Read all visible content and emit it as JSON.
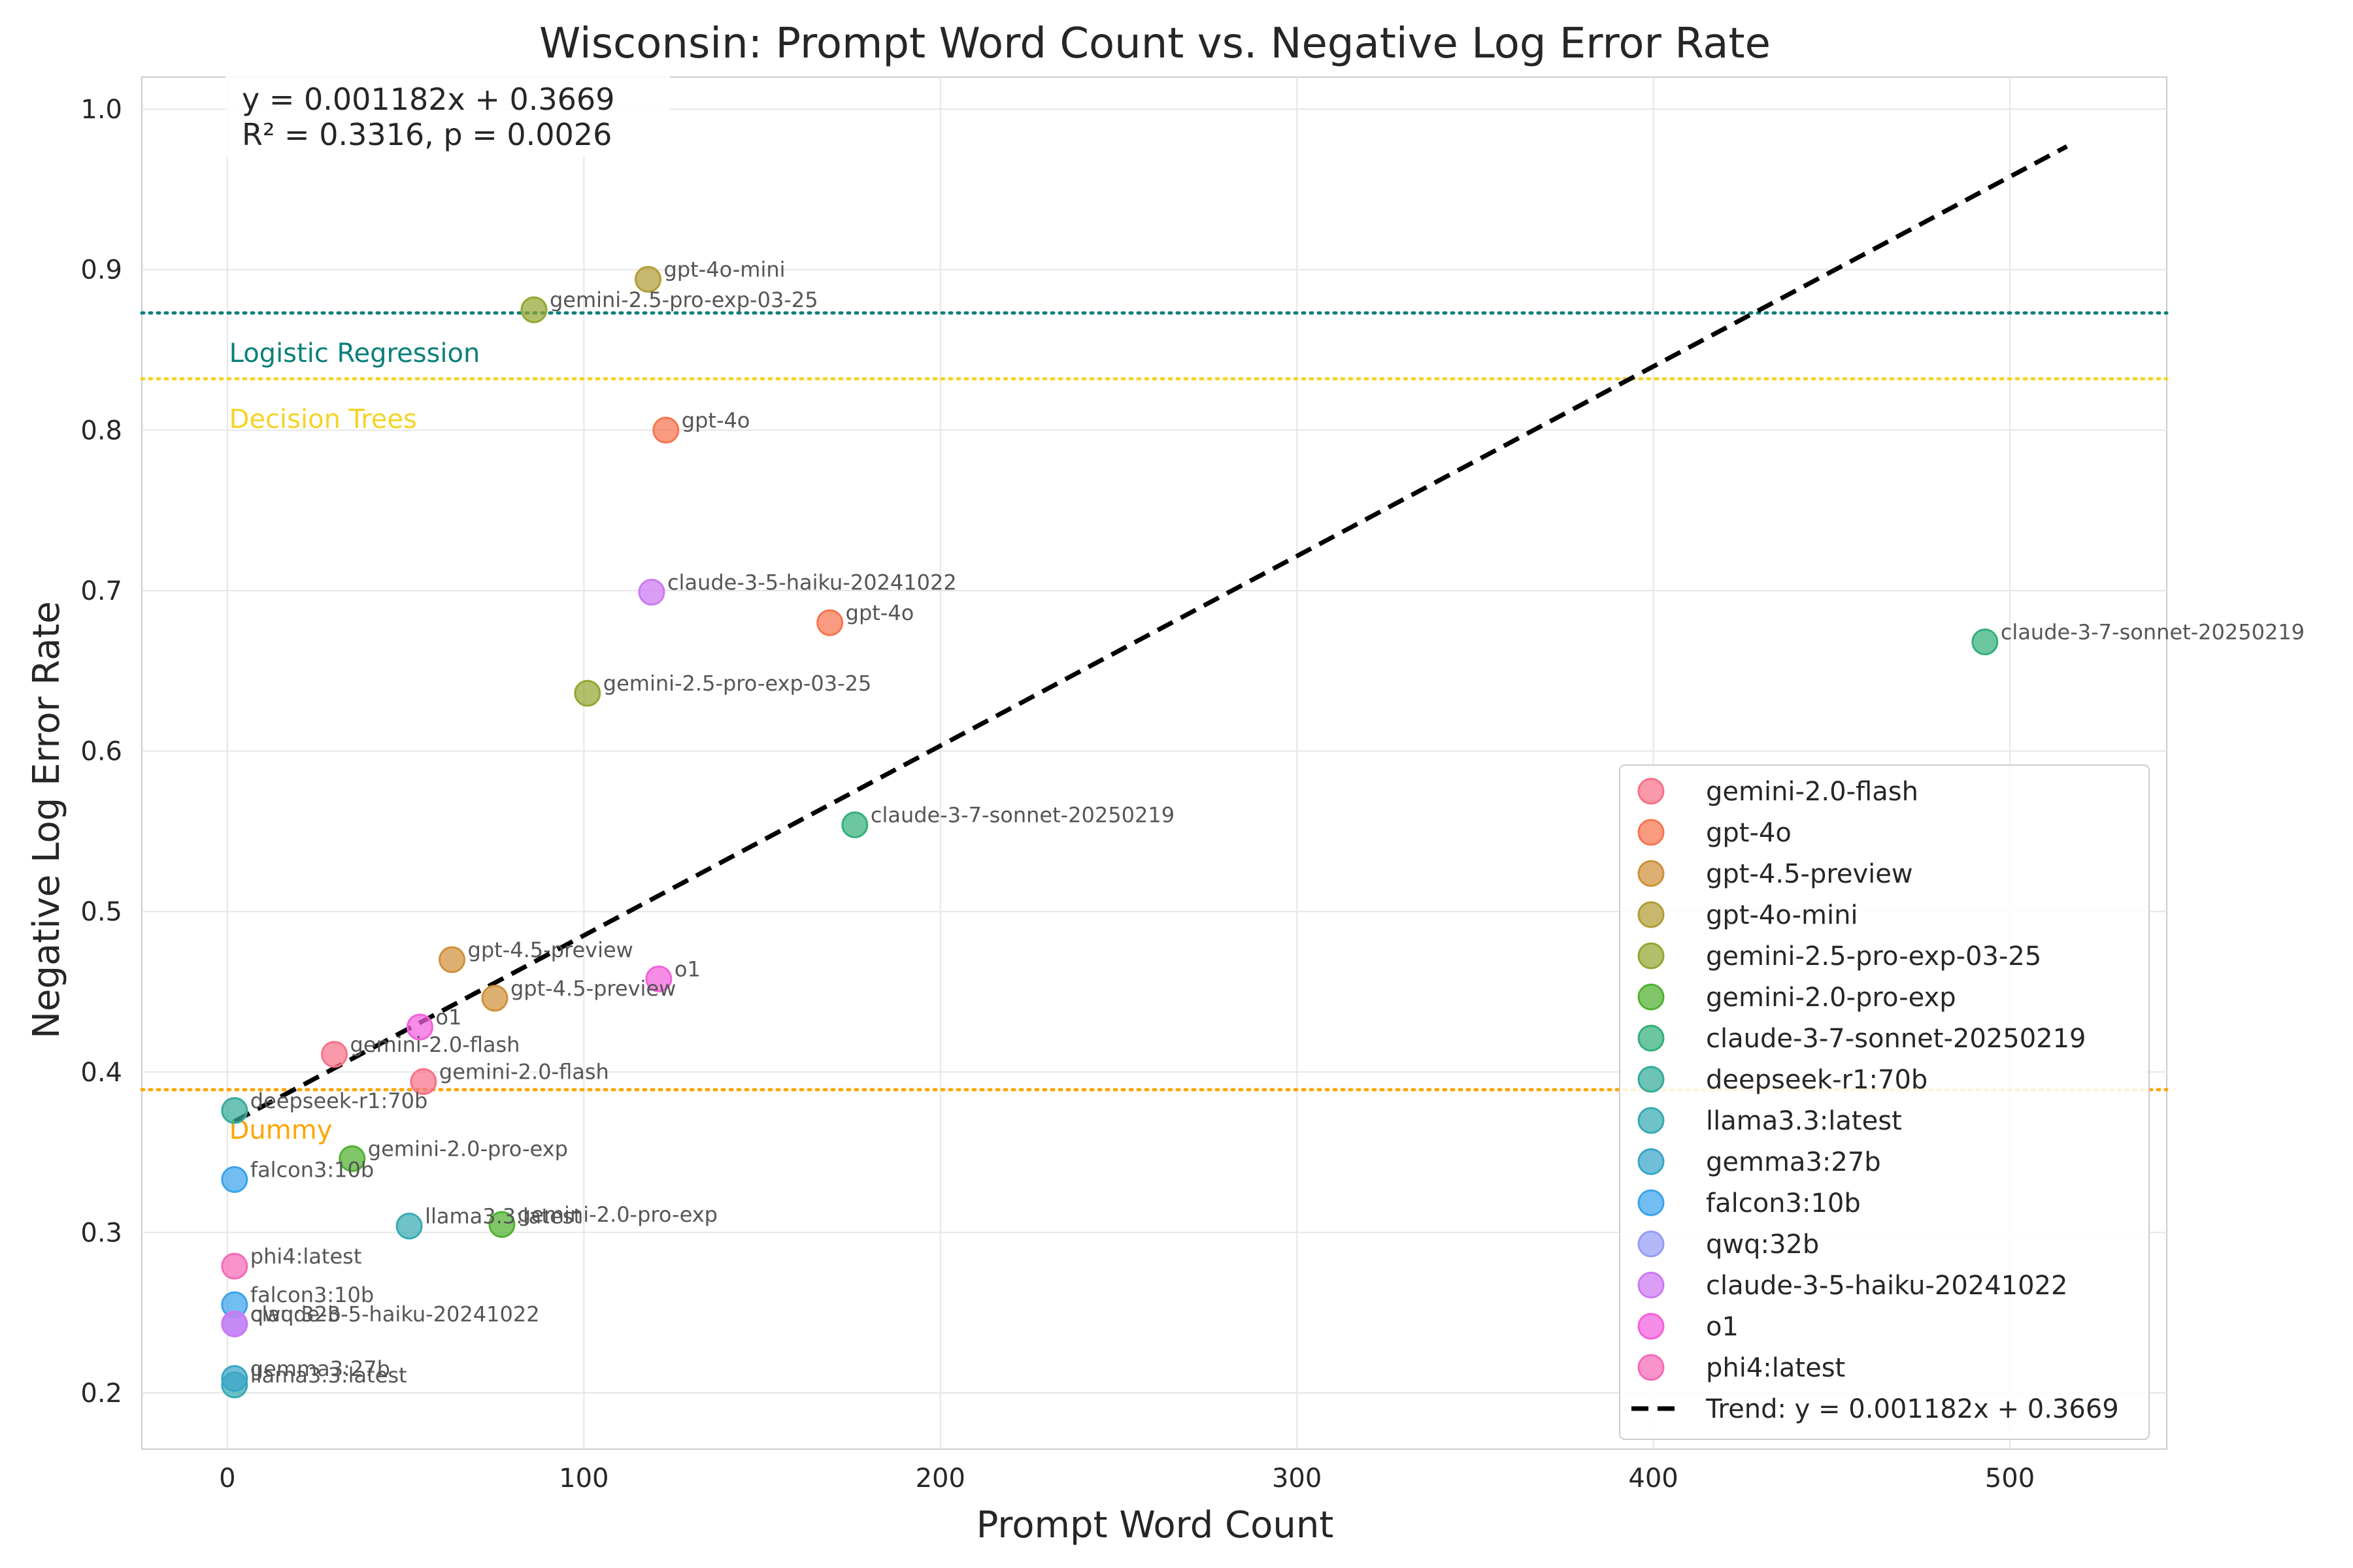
{
  "chart_data": {
    "type": "scatter",
    "title": "Wisconsin: Prompt Word Count vs. Negative Log Error Rate",
    "xlabel": "Prompt Word Count",
    "ylabel": "Negative Log Error Rate",
    "xlim": [
      -24,
      544
    ],
    "ylim": [
      0.165,
      1.02
    ],
    "xticks": [
      0,
      100,
      200,
      300,
      400,
      500
    ],
    "yticks": [
      0.2,
      0.3,
      0.4,
      0.5,
      0.6,
      0.7,
      0.8,
      0.9,
      1.0
    ],
    "grid": true,
    "legend_position": "lower-right",
    "annotation": {
      "line1": "y = 0.001182x + 0.3669",
      "line2": "R² = 0.3316, p = 0.0026"
    },
    "trend": {
      "label": "Trend: y = 0.001182x + 0.3669",
      "slope": 0.001182,
      "intercept": 0.3669,
      "x_range": [
        2,
        516
      ],
      "color": "#000000"
    },
    "baselines": [
      {
        "name": "Logistic Regression",
        "y": 0.873,
        "color": "#0a7f7a"
      },
      {
        "name": "Decision Trees",
        "y": 0.832,
        "color": "#f5d327"
      },
      {
        "name": "Dummy",
        "y": 0.389,
        "color": "#ffa500"
      }
    ],
    "series": [
      {
        "name": "gemini-2.0-flash",
        "color": "#f77189",
        "points": [
          {
            "x": 30,
            "y": 0.411
          },
          {
            "x": 55,
            "y": 0.394
          }
        ]
      },
      {
        "name": "gpt-4o",
        "color": "#f7754f",
        "points": [
          {
            "x": 123,
            "y": 0.8
          },
          {
            "x": 169,
            "y": 0.68
          }
        ]
      },
      {
        "name": "gpt-4.5-preview",
        "color": "#d0903a",
        "points": [
          {
            "x": 63,
            "y": 0.47
          },
          {
            "x": 75,
            "y": 0.446
          }
        ]
      },
      {
        "name": "gpt-4o-mini",
        "color": "#b29d35",
        "points": [
          {
            "x": 118,
            "y": 0.894
          }
        ]
      },
      {
        "name": "gemini-2.5-pro-exp-03-25",
        "color": "#94a632",
        "points": [
          {
            "x": 86,
            "y": 0.875
          },
          {
            "x": 101,
            "y": 0.636
          }
        ]
      },
      {
        "name": "gemini-2.0-pro-exp",
        "color": "#50b131",
        "points": [
          {
            "x": 35,
            "y": 0.346
          },
          {
            "x": 77,
            "y": 0.305
          }
        ]
      },
      {
        "name": "claude-3-7-sonnet-20250219",
        "color": "#33b07a",
        "points": [
          {
            "x": 176,
            "y": 0.554
          },
          {
            "x": 493,
            "y": 0.668
          }
        ]
      },
      {
        "name": "deepseek-r1:70b",
        "color": "#35ac9a",
        "points": [
          {
            "x": 2,
            "y": 0.376
          }
        ]
      },
      {
        "name": "llama3.3:latest",
        "color": "#37abb3",
        "points": [
          {
            "x": 51,
            "y": 0.304
          },
          {
            "x": 2,
            "y": 0.205
          }
        ]
      },
      {
        "name": "gemma3:27b",
        "color": "#3aa5c9",
        "points": [
          {
            "x": 2,
            "y": 0.209
          }
        ]
      },
      {
        "name": "falcon3:10b",
        "color": "#3ba3ec",
        "points": [
          {
            "x": 2,
            "y": 0.333
          },
          {
            "x": 2,
            "y": 0.255
          }
        ]
      },
      {
        "name": "qwq:32b",
        "color": "#959df5",
        "points": [
          {
            "x": 2,
            "y": 0.243
          }
        ]
      },
      {
        "name": "claude-3-5-haiku-20241022",
        "color": "#cc79f4",
        "points": [
          {
            "x": 119,
            "y": 0.699
          },
          {
            "x": 2,
            "y": 0.243
          }
        ]
      },
      {
        "name": "o1",
        "color": "#f461dd",
        "points": [
          {
            "x": 54,
            "y": 0.428
          },
          {
            "x": 121,
            "y": 0.458
          }
        ]
      },
      {
        "name": "phi4:latest",
        "color": "#f66ab8",
        "points": [
          {
            "x": 2,
            "y": 0.279
          }
        ]
      }
    ]
  }
}
